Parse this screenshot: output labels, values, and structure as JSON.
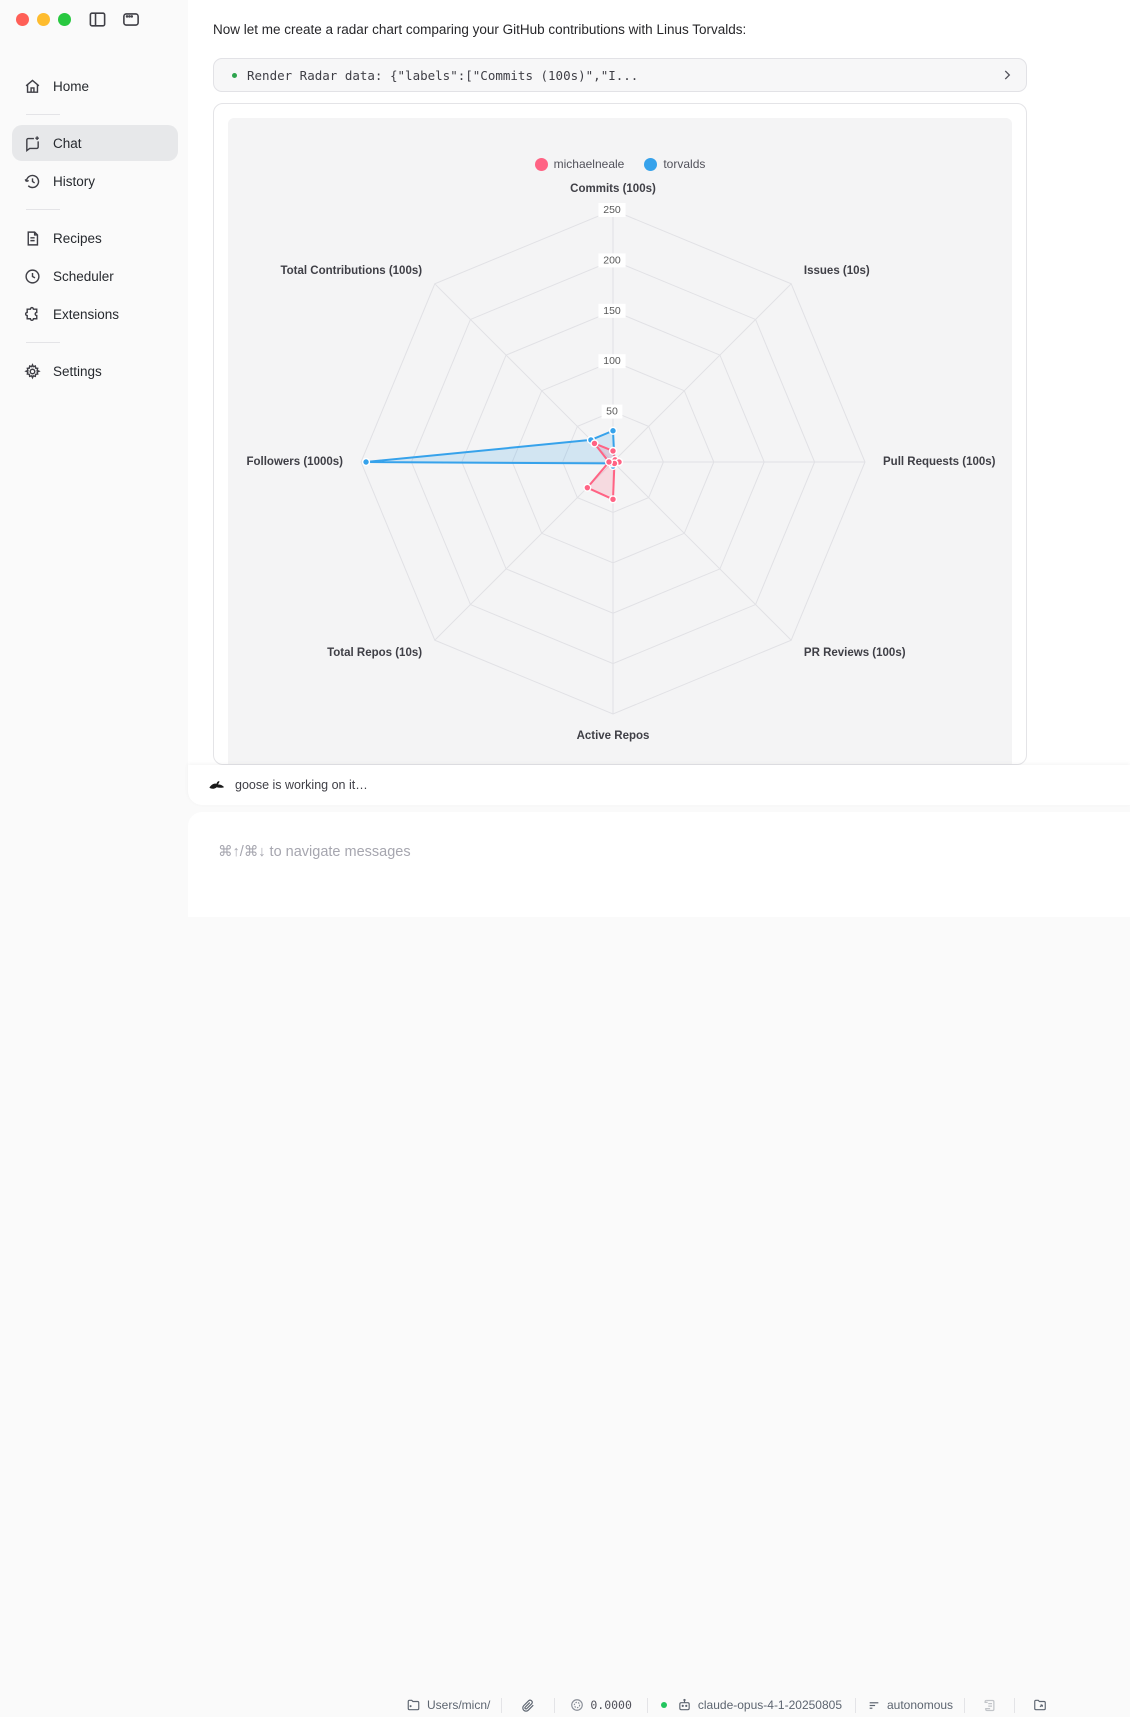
{
  "window": {
    "traffic_lights": {
      "close": "#FF5F57",
      "minimize": "#FEBC2E",
      "zoom": "#28C840"
    }
  },
  "sidebar": {
    "items": [
      {
        "label": "Home",
        "icon": "home-icon"
      },
      {
        "label": "Chat",
        "icon": "chat-icon",
        "selected": true
      },
      {
        "label": "History",
        "icon": "history-icon"
      },
      {
        "label": "Recipes",
        "icon": "recipes-icon"
      },
      {
        "label": "Scheduler",
        "icon": "scheduler-icon"
      },
      {
        "label": "Extensions",
        "icon": "extensions-icon"
      },
      {
        "label": "Settings",
        "icon": "settings-icon"
      }
    ]
  },
  "chat": {
    "message": "Now let me create a radar chart comparing your GitHub contributions with Linus Torvalds:",
    "tool_call": {
      "label": "Render Radar data: {\"labels\":[\"Commits (100s)\",\"I...",
      "status_dot_color": "#2da44e"
    },
    "status": "goose is working on it…"
  },
  "chart_data": {
    "type": "radar",
    "categories": [
      "Commits (100s)",
      "Issues (10s)",
      "Pull Requests (100s)",
      "PR Reviews (100s)",
      "Active Repos",
      "Total Repos (10s)",
      "Followers (1000s)",
      "Total Contributions (100s)"
    ],
    "series": [
      {
        "name": "michaelneale",
        "color": "#FF6384",
        "fill": "rgba(255,99,132,0.18)",
        "values": [
          11,
          3,
          6,
          2,
          37,
          36,
          4,
          26
        ]
      },
      {
        "name": "torvalds",
        "color": "#36A2EB",
        "fill": "rgba(54,162,235,0.18)",
        "values": [
          31,
          2,
          6,
          1,
          4,
          2,
          245,
          31
        ]
      }
    ],
    "rmax": 250,
    "ticks": [
      50,
      100,
      150,
      200,
      250
    ],
    "legend_position": "top",
    "grid": true,
    "grid_color": "#e1e1e5",
    "tick_color": "#595959",
    "label_color": "#3f3f46"
  },
  "composer": {
    "placeholder": "⌘↑/⌘↓ to navigate messages",
    "button_color": "#42506A"
  },
  "footer": {
    "directory": "Users/micn/",
    "cost": "0.0000",
    "model": "claude-opus-4-1-20250805",
    "model_status_color": "#22c55e",
    "mode": "autonomous"
  }
}
